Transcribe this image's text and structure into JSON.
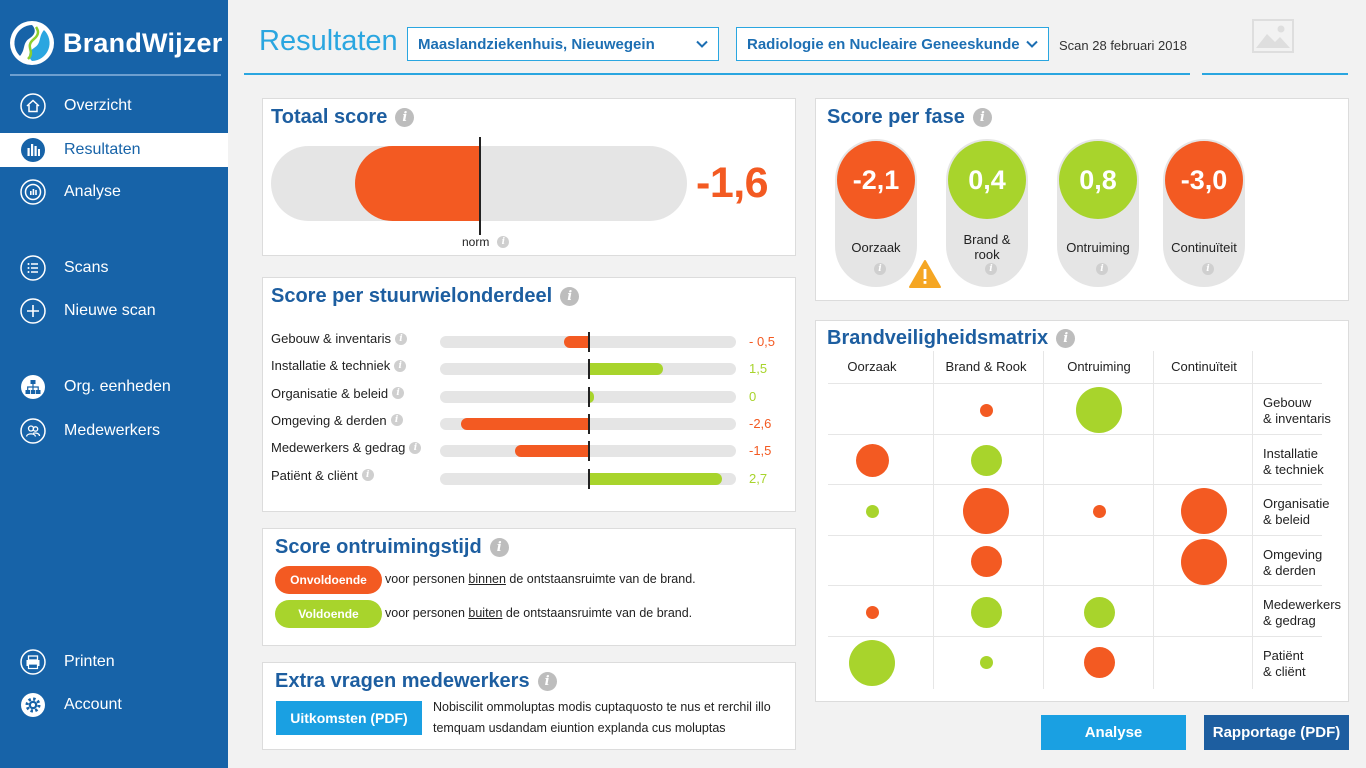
{
  "app": {
    "name": "BrandWijzer"
  },
  "nav": [
    {
      "label": "Overzicht",
      "icon": "home-icon"
    },
    {
      "label": "Resultaten",
      "icon": "bar-chart-icon"
    },
    {
      "label": "Analyse",
      "icon": "analyse-icon"
    },
    {
      "label": "Scans",
      "icon": "list-icon"
    },
    {
      "label": "Nieuwe scan",
      "icon": "plus-circle-icon"
    },
    {
      "label": "Org. eenheden",
      "icon": "org-chart-icon"
    },
    {
      "label": "Medewerkers",
      "icon": "people-icon"
    },
    {
      "label": "Printen",
      "icon": "printer-icon"
    },
    {
      "label": "Account",
      "icon": "gear-icon"
    }
  ],
  "header": {
    "title": "Resultaten",
    "location": "Maaslandziekenhuis, Nieuwegein",
    "department": "Radiologie en Nucleaire Geneeskunde",
    "scan_date": "Scan 28 februari 2018",
    "info_glyph": "i"
  },
  "total": {
    "title": "Totaal score",
    "value": "-1,6",
    "norm_label": "norm",
    "fill_fraction": 0.3
  },
  "stuurwiel": {
    "title": "Score per stuurwielonderdeel",
    "scale_max": 3.0,
    "rows": [
      {
        "label": "Gebouw & inventaris",
        "value": -0.5,
        "display": "- 0,5"
      },
      {
        "label": "Installatie & techniek",
        "value": 1.5,
        "display": "1,5"
      },
      {
        "label": "Organisatie & beleid",
        "value": 0.1,
        "display": "0"
      },
      {
        "label": "Omgeving & derden",
        "value": -2.6,
        "display": "-2,6"
      },
      {
        "label": "Medewerkers & gedrag",
        "value": -1.5,
        "display": "-1,5"
      },
      {
        "label": "Patiënt & cliënt",
        "value": 2.7,
        "display": "2,7"
      }
    ]
  },
  "ontruiming": {
    "title": "Score ontruimingstijd",
    "items": [
      {
        "badge": "Onvoldoende",
        "pre": "voor personen ",
        "emph": "binnen",
        "post": " de ontstaansruimte van de brand.",
        "status": "bad"
      },
      {
        "badge": "Voldoende",
        "pre": "voor personen ",
        "emph": "buiten",
        "post": " de ontstaansruimte van de brand.",
        "status": "good"
      }
    ]
  },
  "extra": {
    "title": "Extra vragen medewerkers",
    "button": "Uitkomsten (PDF)",
    "text": "Nobiscilit ommoluptas modis cuptaquosto te nus et rerchil illo temquam usdandam eiuntion explanda cus moluptas"
  },
  "phases": {
    "title": "Score per fase",
    "items": [
      {
        "value": "-2,1",
        "label": "Oorzaak",
        "status": "bad",
        "warning": true
      },
      {
        "value": "0,4",
        "label": "Brand & rook",
        "status": "good",
        "warning": false
      },
      {
        "value": "0,8",
        "label": "Ontruiming",
        "status": "good",
        "warning": false
      },
      {
        "value": "-3,0",
        "label": "Continuïteit",
        "status": "bad",
        "warning": false
      }
    ]
  },
  "matrix": {
    "title": "Brandveiligheidsmatrix",
    "columns": [
      "Oorzaak",
      "Brand & Rook",
      "Ontruiming",
      "Continuïteit"
    ],
    "rows": [
      {
        "label_line1": "Gebouw",
        "label_line2": "& inventaris",
        "cells": [
          null,
          {
            "s": "bad",
            "m": 1
          },
          {
            "s": "good",
            "m": 3
          },
          null
        ]
      },
      {
        "label_line1": "Installatie",
        "label_line2": "& techniek",
        "cells": [
          {
            "s": "bad",
            "m": 2.2
          },
          {
            "s": "good",
            "m": 2
          },
          null,
          null
        ]
      },
      {
        "label_line1": "Organisatie",
        "label_line2": "& beleid",
        "cells": [
          {
            "s": "good",
            "m": 1
          },
          {
            "s": "bad",
            "m": 3
          },
          {
            "s": "bad",
            "m": 1
          },
          {
            "s": "bad",
            "m": 3
          }
        ]
      },
      {
        "label_line1": "Omgeving",
        "label_line2": "& derden",
        "cells": [
          null,
          {
            "s": "bad",
            "m": 2
          },
          null,
          {
            "s": "bad",
            "m": 3
          }
        ]
      },
      {
        "label_line1": "Medewerkers",
        "label_line2": "& gedrag",
        "cells": [
          {
            "s": "bad",
            "m": 1
          },
          {
            "s": "good",
            "m": 2
          },
          {
            "s": "good",
            "m": 2
          },
          null
        ]
      },
      {
        "label_line1": "Patiënt",
        "label_line2": "& cliënt",
        "cells": [
          {
            "s": "good",
            "m": 3
          },
          {
            "s": "good",
            "m": 1
          },
          {
            "s": "bad",
            "m": 2
          },
          null
        ]
      }
    ]
  },
  "actions": {
    "analyse": "Analyse",
    "rapportage": "Rapportage (PDF)"
  },
  "colors": {
    "bad": "#f35a22",
    "good": "#a8d42c",
    "primary": "#1763a8",
    "accent": "#2aa6e0"
  }
}
